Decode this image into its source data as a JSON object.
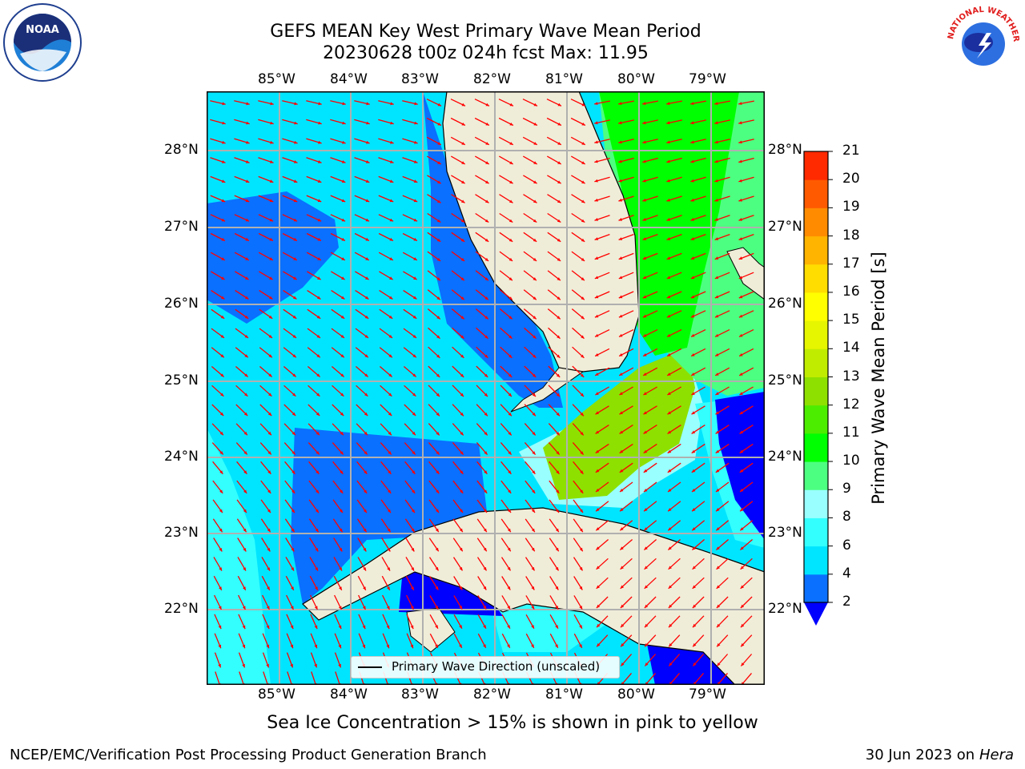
{
  "title": {
    "line1": "GEFS MEAN Key West Primary Wave Mean Period",
    "line2": "20230628 t00z 024h fcst   Max: 11.95"
  },
  "map": {
    "lon_labels": [
      "85°W",
      "84°W",
      "83°W",
      "82°W",
      "81°W",
      "80°W",
      "79°W"
    ],
    "lat_labels": [
      "28°N",
      "27°N",
      "26°N",
      "25°N",
      "24°N",
      "23°N",
      "22°N"
    ],
    "legend": "Primary Wave Direction (unscaled)",
    "arrow_color": "#ff0000",
    "land_color": "#efedd8"
  },
  "colorbar": {
    "title": "Primary Wave Mean Period [s]",
    "ticks": [
      "2",
      "4",
      "6",
      "8",
      "9",
      "10",
      "11",
      "12",
      "13",
      "14",
      "15",
      "16",
      "17",
      "18",
      "19",
      "20",
      "21"
    ],
    "colors": [
      "#0a70ff",
      "#00e5ff",
      "#33ffff",
      "#99ffff",
      "#4dff80",
      "#00ff00",
      "#4ded00",
      "#8ee000",
      "#c0ec00",
      "#e6f500",
      "#ffff00",
      "#ffdd00",
      "#ffb400",
      "#ff8c00",
      "#ff5a00",
      "#ff2a00",
      "#ff0000"
    ],
    "under_color": "#0000ff"
  },
  "logos": {
    "noaa": "NOAA",
    "nws": "NATIONAL WEATHER SERVICE"
  },
  "subtitle": "Sea Ice Concentration > 15% is shown in pink to yellow",
  "footer": {
    "left": "NCEP/EMC/Verification Post Processing Product Generation Branch",
    "date": "30 Jun 2023 on",
    "host": "Hera"
  }
}
